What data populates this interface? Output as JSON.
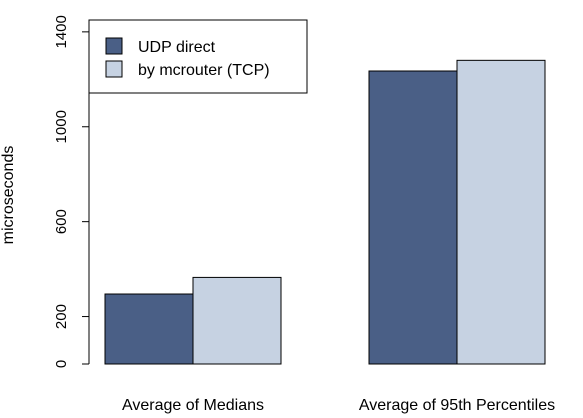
{
  "chart_data": {
    "type": "bar",
    "categories": [
      "Average of Medians",
      "Average of 95th Percentiles"
    ],
    "series": [
      {
        "name": "UDP direct",
        "values": [
          295,
          1235
        ],
        "color": "#4a5f86"
      },
      {
        "name": "by mcrouter (TCP)",
        "values": [
          365,
          1280
        ],
        "color": "#c6d2e2"
      }
    ],
    "title": "",
    "xlabel": "",
    "ylabel": "microseconds",
    "ylim": [
      0,
      1450
    ],
    "yticks": [
      0,
      200,
      600,
      1000,
      1400
    ],
    "grid": false,
    "legend_position": "top-left"
  }
}
